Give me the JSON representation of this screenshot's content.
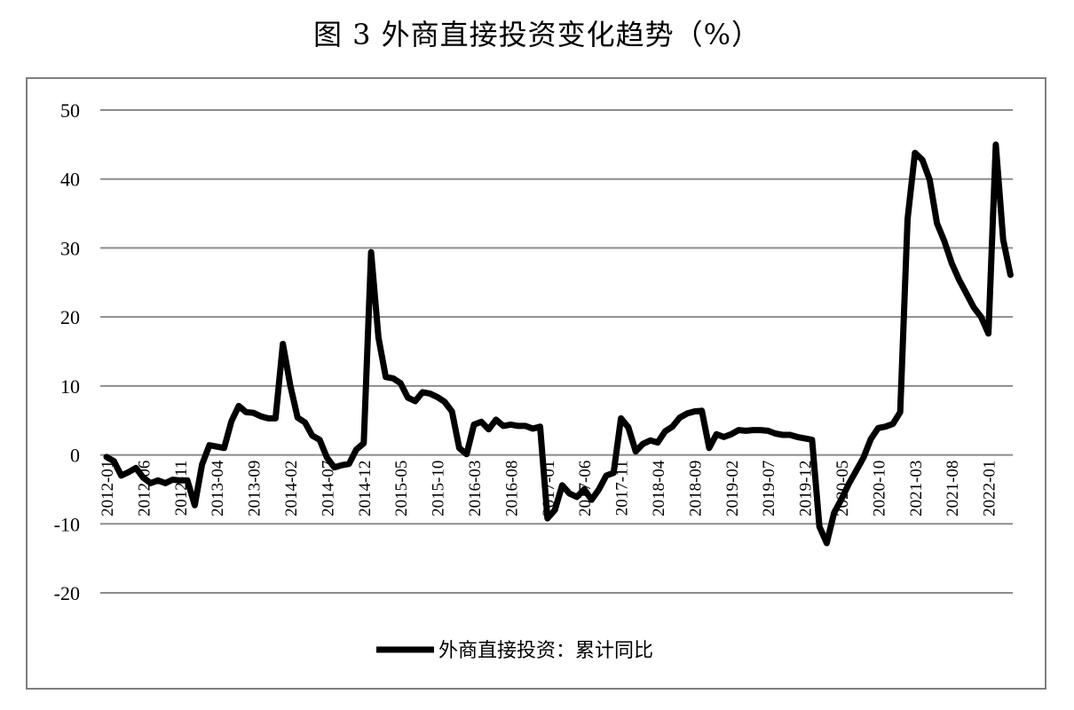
{
  "chart_data": {
    "type": "line",
    "title": "图 3  外商直接投资变化趋势（%）",
    "legend": {
      "position": "bottom",
      "entries": [
        "外商直接投资：累计同比"
      ]
    },
    "grid": {
      "y": true,
      "x": false
    },
    "ylim": [
      -20,
      50
    ],
    "yticks": [
      "50",
      "40",
      "30",
      "20",
      "10",
      "0",
      "-10",
      "-20"
    ],
    "xticks": [
      "2012-01",
      "2012-06",
      "2012-11",
      "2013-04",
      "2013-09",
      "2014-02",
      "2014-07",
      "2014-12",
      "2015-05",
      "2015-10",
      "2016-03",
      "2016-08",
      "2017-01",
      "2017-06",
      "2017-11",
      "2018-04",
      "2018-09",
      "2019-02",
      "2019-07",
      "2019-12",
      "2020-05",
      "2020-10",
      "2021-03",
      "2021-08",
      "2022-01"
    ],
    "series": [
      {
        "name": "外商直接投资：累计同比",
        "color": "#000000",
        "points": [
          [
            "2012-01",
            -0.3
          ],
          [
            "2012-02",
            -0.9
          ],
          [
            "2012-03",
            -3.0
          ],
          [
            "2012-04",
            -2.5
          ],
          [
            "2012-05",
            -1.9
          ],
          [
            "2012-06",
            -3.3
          ],
          [
            "2012-07",
            -4.1
          ],
          [
            "2012-08",
            -3.7
          ],
          [
            "2012-09",
            -4.1
          ],
          [
            "2012-10",
            -3.6
          ],
          [
            "2012-11",
            -3.7
          ],
          [
            "2012-12",
            -3.7
          ],
          [
            "2013-01",
            -7.3
          ],
          [
            "2013-02",
            -1.4
          ],
          [
            "2013-03",
            1.4
          ],
          [
            "2013-04",
            1.2
          ],
          [
            "2013-05",
            1.0
          ],
          [
            "2013-06",
            4.9
          ],
          [
            "2013-07",
            7.1
          ],
          [
            "2013-08",
            6.2
          ],
          [
            "2013-09",
            6.1
          ],
          [
            "2013-10",
            5.6
          ],
          [
            "2013-11",
            5.3
          ],
          [
            "2013-12",
            5.3
          ],
          [
            "2014-01",
            16.1
          ],
          [
            "2014-02",
            10.1
          ],
          [
            "2014-03",
            5.4
          ],
          [
            "2014-04",
            4.7
          ],
          [
            "2014-05",
            2.8
          ],
          [
            "2014-06",
            2.2
          ],
          [
            "2014-07",
            -0.4
          ],
          [
            "2014-08",
            -1.8
          ],
          [
            "2014-09",
            -1.5
          ],
          [
            "2014-10",
            -1.3
          ],
          [
            "2014-11",
            0.8
          ],
          [
            "2014-12",
            1.7
          ],
          [
            "2015-01",
            29.4
          ],
          [
            "2015-02",
            17.0
          ],
          [
            "2015-03",
            11.3
          ],
          [
            "2015-04",
            11.1
          ],
          [
            "2015-05",
            10.4
          ],
          [
            "2015-06",
            8.3
          ],
          [
            "2015-07",
            7.8
          ],
          [
            "2015-08",
            9.1
          ],
          [
            "2015-09",
            8.9
          ],
          [
            "2015-10",
            8.4
          ],
          [
            "2015-11",
            7.7
          ],
          [
            "2015-12",
            6.3
          ],
          [
            "2016-01",
            1.0
          ],
          [
            "2016-02",
            0.1
          ],
          [
            "2016-03",
            4.4
          ],
          [
            "2016-04",
            4.8
          ],
          [
            "2016-05",
            3.7
          ],
          [
            "2016-06",
            5.1
          ],
          [
            "2016-07",
            4.2
          ],
          [
            "2016-08",
            4.4
          ],
          [
            "2016-09",
            4.2
          ],
          [
            "2016-10",
            4.2
          ],
          [
            "2016-11",
            3.8
          ],
          [
            "2016-12",
            4.1
          ],
          [
            "2017-01",
            -9.2
          ],
          [
            "2017-02",
            -8.0
          ],
          [
            "2017-03",
            -4.4
          ],
          [
            "2017-04",
            -5.6
          ],
          [
            "2017-05",
            -6.1
          ],
          [
            "2017-06",
            -5.0
          ],
          [
            "2017-07",
            -6.5
          ],
          [
            "2017-08",
            -5.0
          ],
          [
            "2017-09",
            -3.0
          ],
          [
            "2017-10",
            -2.6
          ],
          [
            "2017-11",
            5.3
          ],
          [
            "2017-12",
            4.0
          ],
          [
            "2018-01",
            0.5
          ],
          [
            "2018-02",
            1.6
          ],
          [
            "2018-03",
            2.1
          ],
          [
            "2018-04",
            1.8
          ],
          [
            "2018-05",
            3.4
          ],
          [
            "2018-06",
            4.1
          ],
          [
            "2018-07",
            5.4
          ],
          [
            "2018-08",
            6.0
          ],
          [
            "2018-09",
            6.3
          ],
          [
            "2018-10",
            6.4
          ],
          [
            "2018-11",
            1.0
          ],
          [
            "2018-12",
            3.0
          ],
          [
            "2019-01",
            2.6
          ],
          [
            "2019-02",
            3.0
          ],
          [
            "2019-03",
            3.6
          ],
          [
            "2019-04",
            3.5
          ],
          [
            "2019-05",
            3.6
          ],
          [
            "2019-06",
            3.6
          ],
          [
            "2019-07",
            3.5
          ],
          [
            "2019-08",
            3.1
          ],
          [
            "2019-09",
            2.9
          ],
          [
            "2019-10",
            2.9
          ],
          [
            "2019-11",
            2.6
          ],
          [
            "2019-12",
            2.4
          ],
          [
            "2020-01",
            2.2
          ],
          [
            "2020-02",
            -10.4
          ],
          [
            "2020-03",
            -12.8
          ],
          [
            "2020-04",
            -8.4
          ],
          [
            "2020-05",
            -6.4
          ],
          [
            "2020-06",
            -4.2
          ],
          [
            "2020-07",
            -2.3
          ],
          [
            "2020-08",
            -0.4
          ],
          [
            "2020-09",
            2.3
          ],
          [
            "2020-10",
            3.9
          ],
          [
            "2020-11",
            4.1
          ],
          [
            "2020-12",
            4.5
          ],
          [
            "2021-01",
            6.2
          ],
          [
            "2021-02",
            34.2
          ],
          [
            "2021-03",
            43.8
          ],
          [
            "2021-04",
            42.8
          ],
          [
            "2021-05",
            39.9
          ],
          [
            "2021-06",
            33.6
          ],
          [
            "2021-07",
            31.0
          ],
          [
            "2021-08",
            27.8
          ],
          [
            "2021-09",
            25.4
          ],
          [
            "2021-10",
            23.4
          ],
          [
            "2021-11",
            21.4
          ],
          [
            "2021-12",
            20.0
          ],
          [
            "2022-01",
            17.6
          ],
          [
            "2022-02",
            45.0
          ],
          [
            "2022-03",
            31.2
          ],
          [
            "2022-04",
            26.1
          ]
        ]
      }
    ]
  }
}
